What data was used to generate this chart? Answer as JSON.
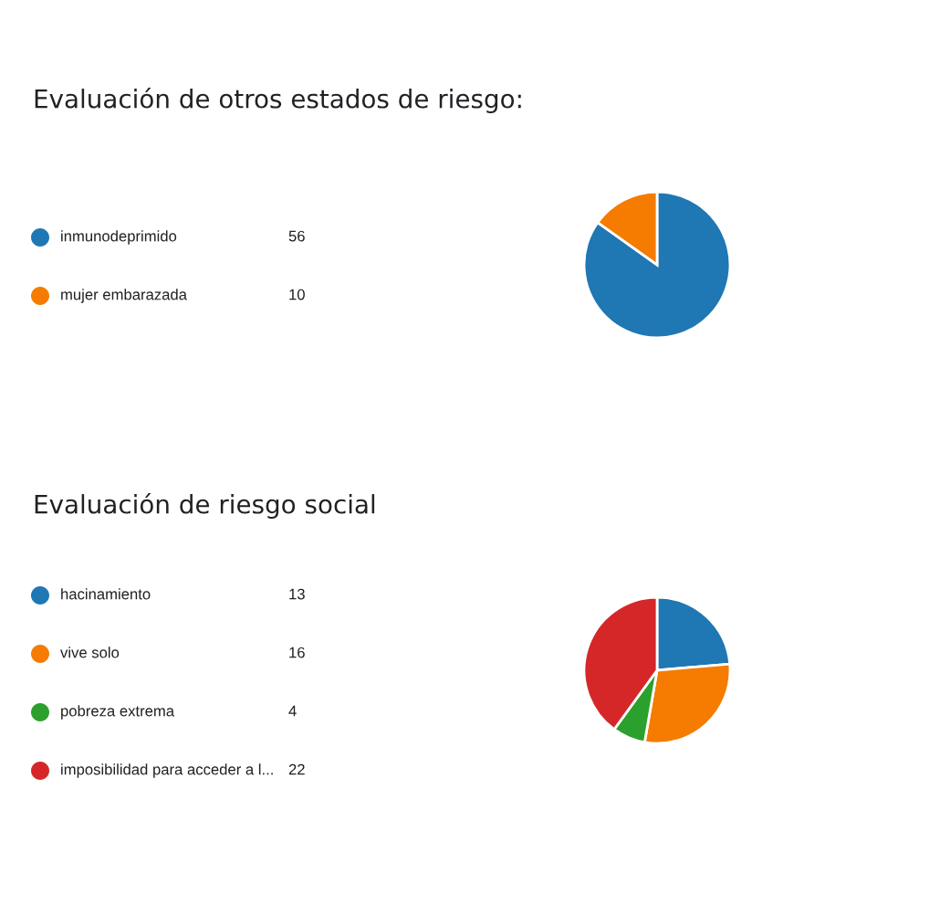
{
  "chart_data": [
    {
      "type": "pie",
      "title": "Evaluación de otros estados de riesgo:",
      "categories": [
        "inmunodeprimido",
        "mujer embarazada"
      ],
      "values": [
        56,
        10
      ],
      "colors": [
        "#1f77b4",
        "#f57c00"
      ],
      "legend": "left",
      "data_labels": true
    },
    {
      "type": "pie",
      "title": "Evaluación de riesgo social",
      "categories": [
        "hacinamiento",
        "vive solo",
        "pobreza extrema",
        "imposibilidad para acceder a l..."
      ],
      "values": [
        13,
        16,
        4,
        22
      ],
      "colors": [
        "#1f77b4",
        "#f57c00",
        "#2ca02c",
        "#d62728"
      ],
      "legend": "left",
      "data_labels": true
    }
  ]
}
